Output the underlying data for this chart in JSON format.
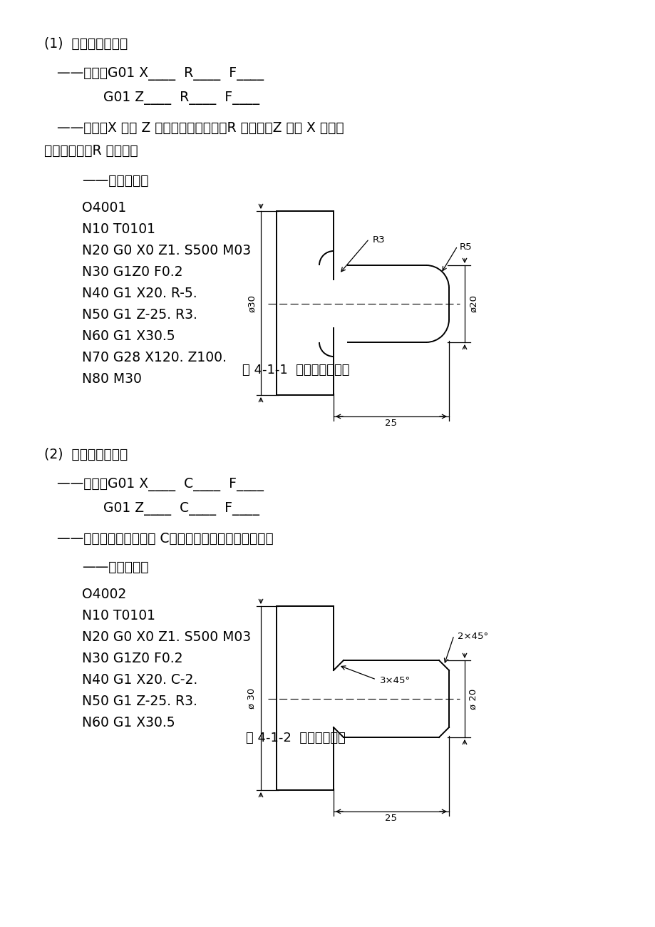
{
  "bg_color": "#ffffff",
  "body_fontsize": 13.5,
  "code_fontsize": 13.5,
  "fig_caption_fontsize": 13,
  "section1": {
    "heading": "(1)  圆角自动过渡：",
    "line1": "——格式：G01 X____  R____  F____",
    "line2": "G01 Z____  R____  F____",
    "desc1": "——说明：X 轴向 Z 轴过渡倒圆（凸弧）R 值为负，Z 轴向 X 轴过渡",
    "desc2": "倒圆（凹弧）R 值为正。",
    "example_head": "——程序示例：",
    "code_lines": [
      "O4001",
      "N10 T0101",
      "N20 G0 X0 Z1. S500 M03",
      "N30 G1Z0 F0.2",
      "N40 G1 X20. R-5.",
      "N50 G1 Z-25. R3.",
      "N60 G1 X30.5",
      "N70 G28 X120. Z100.",
      "N80 M30"
    ],
    "fig_caption": "图 4-1-1  圆角自动过渡过"
  },
  "section2": {
    "heading": "(2)  直角自动过渡：",
    "line1": "——程式：G01 X____  C____  F____",
    "line2": "G01 Z____  C____  F____",
    "desc1": "——说明：倒直角用指令 C，其符号设置规则同倒圆角。",
    "example_head": "——程序示例：",
    "code_lines": [
      "O4002",
      "N10 T0101",
      "N20 G0 X0 Z1. S500 M03",
      "N30 G1Z0 F0.2",
      "N40 G1 X20. C-2.",
      "N50 G1 Z-25. R3.",
      "N60 G1 X30.5"
    ],
    "fig_caption": "图 4-1-2  直角自动过渡"
  }
}
